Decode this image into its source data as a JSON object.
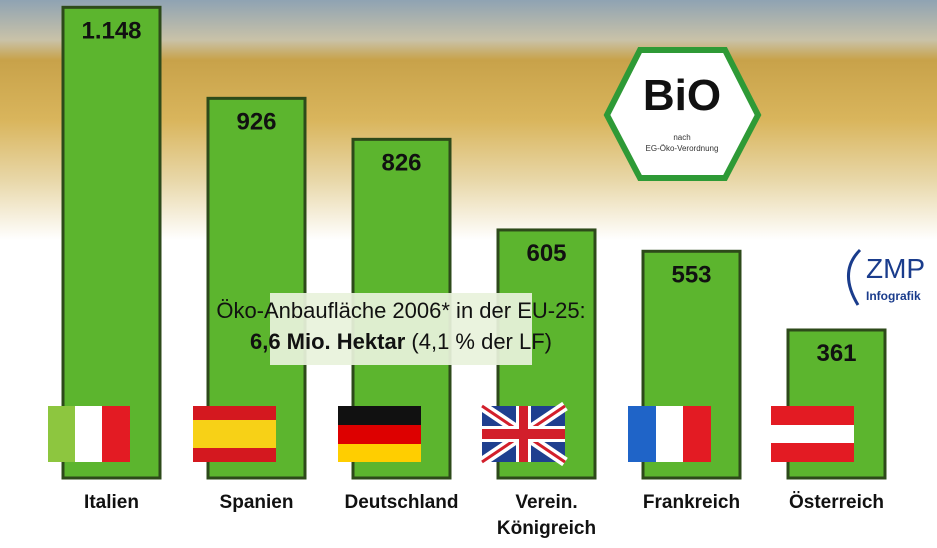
{
  "chart_data": {
    "type": "bar",
    "categories": [
      "Italien",
      "Spanien",
      "Deutschland",
      "Verein. Königreich",
      "Frankreich",
      "Österreich"
    ],
    "values": [
      1148,
      926,
      826,
      605,
      553,
      361
    ],
    "value_labels": [
      "1.148",
      "926",
      "826",
      "605",
      "553",
      "361"
    ],
    "color": "#5cb52e",
    "annotation": {
      "line1": "Öko-Anbaufläche 2006* in der EU-25:",
      "bold": "6,6 Mio. Hektar",
      "rest": "(4,1 % der LF)"
    },
    "bio_logo": {
      "text": "BiO",
      "sub1": "nach",
      "sub2": "EG-Öko-Verordnung"
    },
    "source": {
      "name": "ZMP",
      "sub": "Infografik"
    }
  }
}
